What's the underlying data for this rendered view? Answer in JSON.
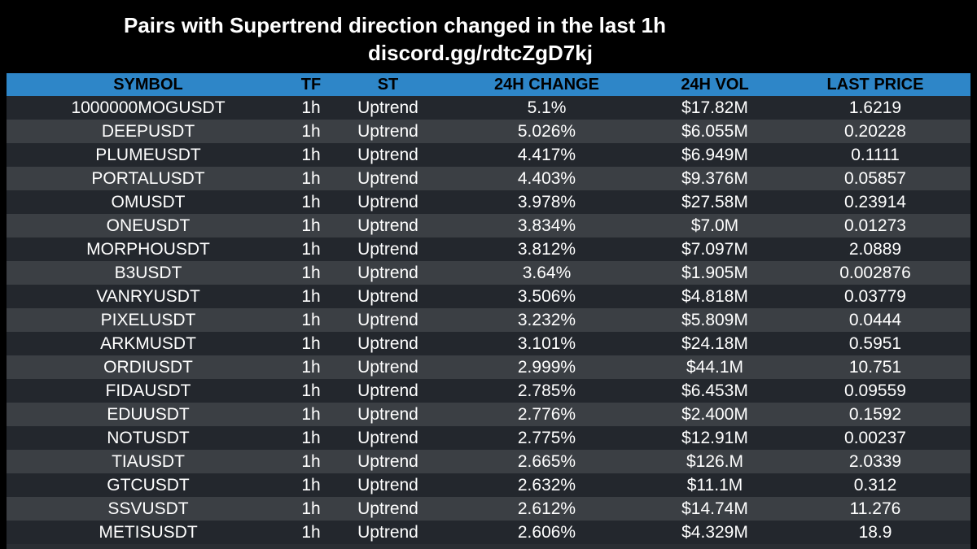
{
  "header": {
    "title": "Pairs with Supertrend direction changed in the last 1h",
    "link": "discord.gg/rdtcZgD7kj"
  },
  "colors": {
    "background": "#000000",
    "header_bg": "#2e86c8",
    "row_dark": "#23272d",
    "row_light": "#3b3f44",
    "text": "#ffffff"
  },
  "table": {
    "columns": [
      "SYMBOL",
      "TF",
      "ST",
      "24H CHANGE",
      "24H VOL",
      "LAST PRICE"
    ],
    "rows": [
      [
        "1000000MOGUSDT",
        "1h",
        "Uptrend",
        "5.1%",
        "$17.82M",
        "1.6219"
      ],
      [
        "DEEPUSDT",
        "1h",
        "Uptrend",
        "5.026%",
        "$6.055M",
        "0.20228"
      ],
      [
        "PLUMEUSDT",
        "1h",
        "Uptrend",
        "4.417%",
        "$6.949M",
        "0.1111"
      ],
      [
        "PORTALUSDT",
        "1h",
        "Uptrend",
        "4.403%",
        "$9.376M",
        "0.05857"
      ],
      [
        "OMUSDT",
        "1h",
        "Uptrend",
        "3.978%",
        "$27.58M",
        "0.23914"
      ],
      [
        "ONEUSDT",
        "1h",
        "Uptrend",
        "3.834%",
        "$7.0M",
        "0.01273"
      ],
      [
        "MORPHOUSDT",
        "1h",
        "Uptrend",
        "3.812%",
        "$7.097M",
        "2.0889"
      ],
      [
        "B3USDT",
        "1h",
        "Uptrend",
        "3.64%",
        "$1.905M",
        "0.002876"
      ],
      [
        "VANRYUSDT",
        "1h",
        "Uptrend",
        "3.506%",
        "$4.818M",
        "0.03779"
      ],
      [
        "PIXELUSDT",
        "1h",
        "Uptrend",
        "3.232%",
        "$5.809M",
        "0.0444"
      ],
      [
        "ARKMUSDT",
        "1h",
        "Uptrend",
        "3.101%",
        "$24.18M",
        "0.5951"
      ],
      [
        "ORDIUSDT",
        "1h",
        "Uptrend",
        "2.999%",
        "$44.1M",
        "10.751"
      ],
      [
        "FIDAUSDT",
        "1h",
        "Uptrend",
        "2.785%",
        "$6.453M",
        "0.09559"
      ],
      [
        "EDUUSDT",
        "1h",
        "Uptrend",
        "2.776%",
        "$2.400M",
        "0.1592"
      ],
      [
        "NOTUSDT",
        "1h",
        "Uptrend",
        "2.775%",
        "$12.91M",
        "0.00237"
      ],
      [
        "TIAUSDT",
        "1h",
        "Uptrend",
        "2.665%",
        "$126.M",
        "2.0339"
      ],
      [
        "GTCUSDT",
        "1h",
        "Uptrend",
        "2.632%",
        "$11.1M",
        "0.312"
      ],
      [
        "SSVUSDT",
        "1h",
        "Uptrend",
        "2.612%",
        "$14.74M",
        "11.276"
      ],
      [
        "METISUSDT",
        "1h",
        "Uptrend",
        "2.606%",
        "$4.329M",
        "18.9"
      ]
    ]
  }
}
